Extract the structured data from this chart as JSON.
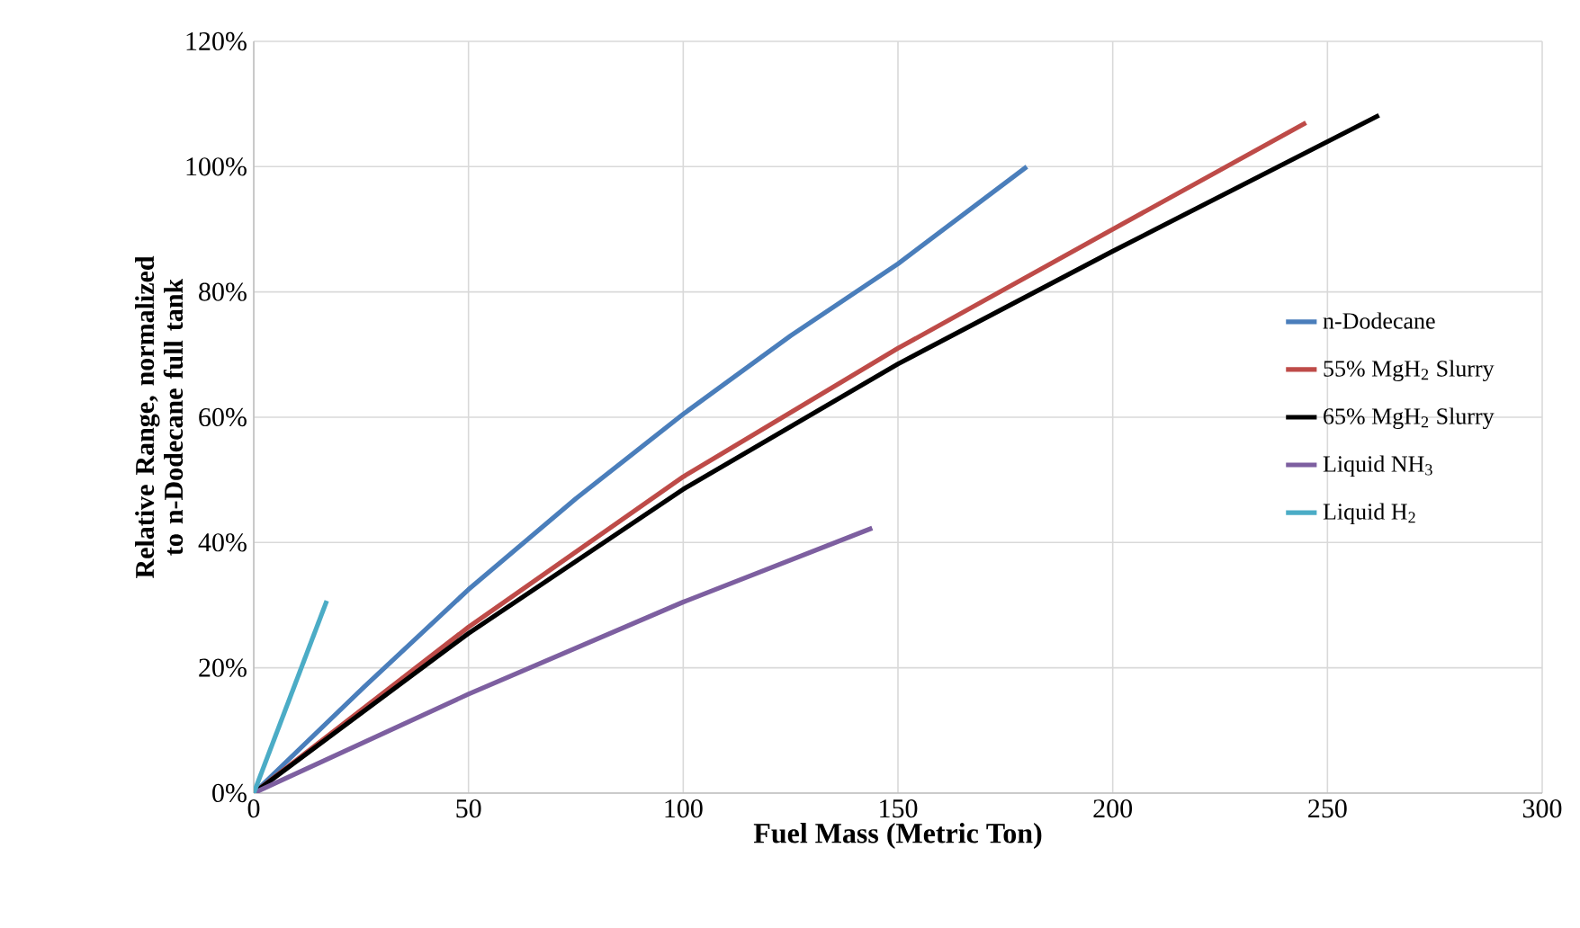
{
  "chart_data": {
    "type": "line",
    "xlabel": "Fuel Mass (Metric Ton)",
    "ylabel": "Relative Range, normalized to n-Dodecane full tank",
    "xlim": [
      0,
      300
    ],
    "ylim": [
      0,
      120
    ],
    "xticks": [
      0,
      50,
      100,
      150,
      200,
      250,
      300
    ],
    "yticks": [
      {
        "value": 0,
        "label": "0%"
      },
      {
        "value": 20,
        "label": "20%"
      },
      {
        "value": 40,
        "label": "40%"
      },
      {
        "value": 60,
        "label": "60%"
      },
      {
        "value": 80,
        "label": "80%"
      },
      {
        "value": 100,
        "label": "100%"
      },
      {
        "value": 120,
        "label": "120%"
      }
    ],
    "grid": true,
    "legend": "right",
    "marker": "none",
    "line_style": "solid",
    "series": [
      {
        "name": "n-Dodecane",
        "color": "#4a7ebb",
        "x": [
          0,
          25,
          50,
          75,
          100,
          125,
          150,
          180
        ],
        "values": [
          0,
          16.5,
          32.5,
          47,
          60.5,
          73,
          84.5,
          100
        ]
      },
      {
        "name": "55% MgH$_{2}$ Slurry",
        "color": "#be4b48",
        "x": [
          0,
          50,
          100,
          150,
          200,
          245
        ],
        "values": [
          0,
          26.5,
          50.5,
          71,
          90,
          107
        ]
      },
      {
        "name": "65% MgH$_{2}$ Slurry",
        "color": "#000000",
        "x": [
          0,
          50,
          100,
          150,
          200,
          262
        ],
        "values": [
          0,
          25.5,
          48.5,
          68.5,
          86.5,
          108.2
        ]
      },
      {
        "name": "Liquid NH$_{3}$",
        "color": "#7d5fa0",
        "x": [
          0,
          50,
          100,
          144
        ],
        "values": [
          0,
          15.8,
          30.5,
          42.3
        ]
      },
      {
        "name": "Liquid H$_{2}$",
        "color": "#4bacc6",
        "x": [
          0,
          17
        ],
        "values": [
          0,
          30.7
        ]
      }
    ]
  }
}
